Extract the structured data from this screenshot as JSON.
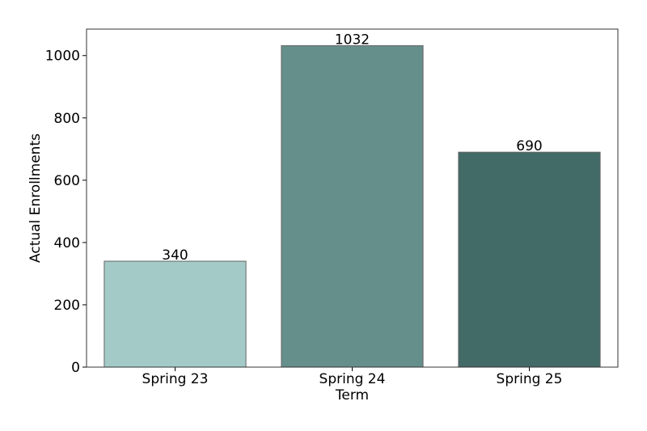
{
  "chart_data": {
    "type": "bar",
    "title": "",
    "xlabel": "Term",
    "ylabel": "Actual Enrollments",
    "categories": [
      "Spring 23",
      "Spring 24",
      "Spring 25"
    ],
    "values": [
      340,
      1032,
      690
    ],
    "value_labels": [
      "340",
      "1032",
      "690"
    ],
    "bar_colors": [
      "#a3cac7",
      "#658f8b",
      "#426a66"
    ],
    "bar_edge_color": "#666666",
    "ylim": [
      0,
      1085
    ],
    "yticks": [
      0,
      200,
      400,
      600,
      800,
      1000
    ],
    "ytick_labels": [
      "0",
      "200",
      "400",
      "600",
      "800",
      "1000"
    ],
    "grid": false,
    "legend": "none"
  }
}
